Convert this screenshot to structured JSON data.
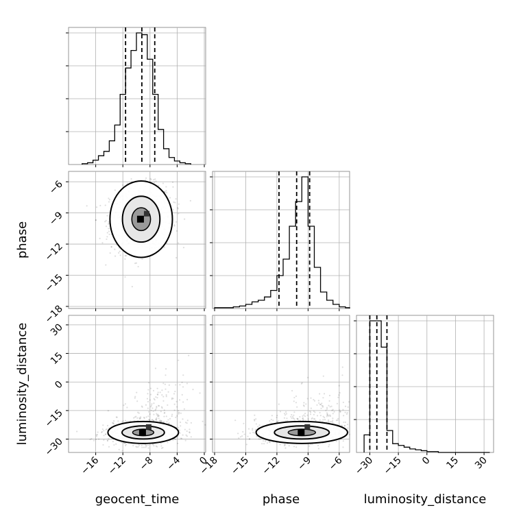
{
  "chart_data": {
    "type": "corner",
    "parameters": [
      "geocent_time",
      "phase",
      "luminosity_distance"
    ],
    "ticks": {
      "geocent_time": [
        -16,
        -12,
        -8,
        -4,
        0
      ],
      "phase": [
        -18,
        -15,
        -12,
        -9,
        -6
      ],
      "luminosity_distance": [
        -30,
        -15,
        0,
        15,
        30
      ]
    },
    "ranges": {
      "geocent_time": [
        -20,
        0.2
      ],
      "phase": [
        -18.2,
        -5.0
      ],
      "luminosity_distance": [
        -37,
        35
      ]
    },
    "histograms": [
      {
        "parameter": "geocent_time",
        "bin_edges": [
          -18,
          -17.2,
          -16.4,
          -15.6,
          -14.8,
          -14,
          -13.2,
          -12.4,
          -11.6,
          -10.8,
          -10,
          -9.2,
          -8.4,
          -7.6,
          -6.8,
          -6,
          -5.2,
          -4.4,
          -3.6,
          -2.8,
          -2
        ],
        "counts": [
          1,
          2,
          5,
          10,
          15,
          27,
          45,
          80,
          110,
          130,
          150,
          148,
          120,
          80,
          40,
          18,
          8,
          4,
          2,
          1
        ],
        "quantiles": [
          -11.6,
          -9.2,
          -7.3
        ]
      },
      {
        "parameter": "phase",
        "bin_edges": [
          -18,
          -17.4,
          -16.8,
          -16.2,
          -15.6,
          -15,
          -14.4,
          -13.8,
          -13.2,
          -12.6,
          -12,
          -11.4,
          -10.8,
          -10.2,
          -9.6,
          -9,
          -8.4,
          -7.8,
          -7.2,
          -6.6,
          -6,
          -5.4,
          -4.8
        ],
        "counts": [
          1,
          1,
          1,
          2,
          3,
          5,
          8,
          10,
          14,
          22,
          40,
          60,
          100,
          130,
          160,
          100,
          50,
          20,
          10,
          5,
          2,
          1
        ],
        "quantiles": [
          -11.8,
          -10.1,
          -8.85
        ]
      },
      {
        "parameter": "luminosity_distance",
        "bin_edges": [
          -33,
          -30,
          -27,
          -24,
          -21,
          -18,
          -15,
          -12,
          -9,
          -6,
          -3,
          0,
          3,
          6,
          9,
          12,
          15,
          18,
          21,
          24,
          27,
          30,
          33
        ],
        "counts": [
          20,
          150,
          150,
          120,
          25,
          10,
          8,
          6,
          4,
          3,
          2,
          1,
          1,
          0,
          0,
          0,
          0,
          0,
          0,
          0,
          0,
          0
        ],
        "quantiles": [
          -30.0,
          -26.3,
          -21.0
        ]
      }
    ],
    "contour_panels": [
      {
        "x": "geocent_time",
        "y": "phase"
      },
      {
        "x": "geocent_time",
        "y": "luminosity_distance"
      },
      {
        "x": "phase",
        "y": "luminosity_distance"
      }
    ],
    "grid": true
  }
}
